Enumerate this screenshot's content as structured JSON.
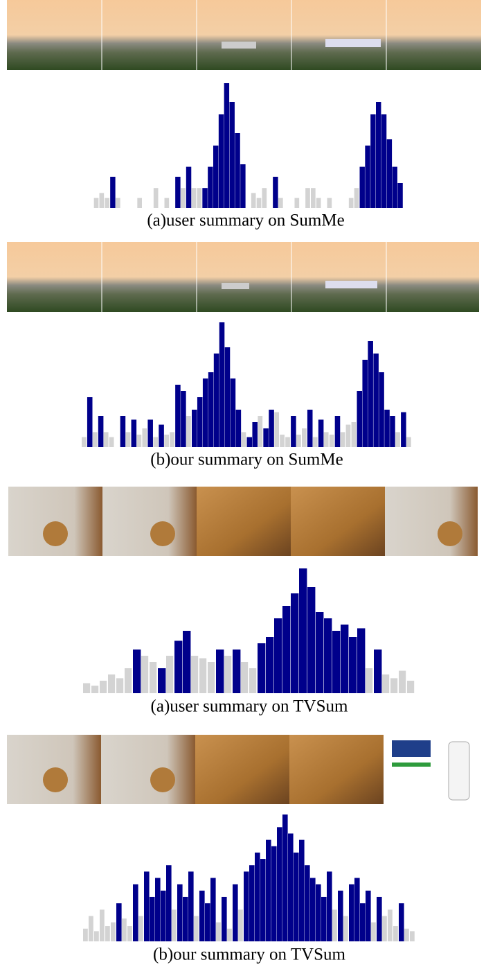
{
  "chart_data": [
    {
      "type": "bar",
      "title": "(a)user summary on SumMe",
      "color": "#00008b",
      "base_color": "#d3d3d3",
      "ylim": [
        0,
        100
      ],
      "values": [
        0,
        0,
        8,
        12,
        8,
        25,
        8,
        0,
        0,
        0,
        8,
        0,
        0,
        16,
        0,
        8,
        0,
        25,
        16,
        33,
        16,
        16,
        16,
        33,
        50,
        75,
        100,
        85,
        60,
        35,
        0,
        12,
        8,
        16,
        0,
        25,
        8,
        0,
        0,
        8,
        0,
        16,
        16,
        8,
        0,
        8,
        0,
        0,
        0,
        8,
        16,
        33,
        50,
        75,
        85,
        75,
        55,
        33,
        20,
        0
      ],
      "selected": [
        5,
        17,
        19,
        22,
        23,
        24,
        25,
        26,
        27,
        28,
        29,
        35,
        51,
        52,
        53,
        54,
        55,
        56,
        57,
        58
      ]
    },
    {
      "type": "bar",
      "title": "(b)our summary on SumMe",
      "color": "#00008b",
      "base_color": "#d3d3d3",
      "ylim": [
        0,
        100
      ],
      "values": [
        8,
        40,
        12,
        25,
        12,
        8,
        0,
        25,
        12,
        22,
        10,
        15,
        22,
        8,
        18,
        10,
        12,
        50,
        45,
        25,
        30,
        40,
        55,
        60,
        75,
        100,
        80,
        55,
        30,
        12,
        8,
        20,
        25,
        15,
        30,
        28,
        10,
        8,
        25,
        10,
        15,
        30,
        8,
        22,
        12,
        10,
        25,
        12,
        18,
        20,
        45,
        70,
        85,
        75,
        60,
        30,
        25,
        12,
        28,
        8
      ],
      "selected": [
        1,
        3,
        7,
        9,
        12,
        14,
        17,
        18,
        20,
        21,
        22,
        23,
        24,
        25,
        26,
        27,
        28,
        30,
        31,
        33,
        34,
        38,
        41,
        43,
        46,
        50,
        51,
        52,
        53,
        54,
        55,
        56,
        58
      ]
    },
    {
      "type": "bar",
      "title": "(a)user summary on TVSum",
      "color": "#00008b",
      "base_color": "#d3d3d3",
      "ylim": [
        0,
        100
      ],
      "values": [
        8,
        6,
        10,
        15,
        12,
        20,
        35,
        30,
        25,
        20,
        30,
        42,
        50,
        30,
        28,
        25,
        35,
        30,
        35,
        25,
        20,
        40,
        45,
        60,
        70,
        80,
        100,
        85,
        65,
        60,
        50,
        55,
        45,
        52,
        20,
        35,
        15,
        12,
        18,
        10
      ],
      "selected": [
        6,
        9,
        11,
        12,
        16,
        18,
        21,
        22,
        23,
        24,
        25,
        26,
        27,
        28,
        29,
        30,
        31,
        32,
        33,
        35
      ]
    },
    {
      "type": "bar",
      "title": "(b)our summary on TVSum",
      "color": "#00008b",
      "base_color": "#d3d3d3",
      "ylim": [
        0,
        100
      ],
      "values": [
        10,
        20,
        8,
        25,
        12,
        15,
        30,
        18,
        12,
        45,
        20,
        55,
        35,
        50,
        40,
        60,
        25,
        45,
        35,
        55,
        20,
        40,
        30,
        50,
        15,
        35,
        10,
        45,
        25,
        55,
        60,
        70,
        65,
        80,
        75,
        90,
        100,
        85,
        70,
        80,
        60,
        50,
        45,
        35,
        55,
        25,
        40,
        20,
        45,
        50,
        30,
        40,
        15,
        35,
        20,
        25,
        12,
        30,
        10,
        8
      ],
      "selected": [
        6,
        9,
        11,
        12,
        13,
        14,
        15,
        17,
        18,
        19,
        21,
        22,
        23,
        25,
        27,
        29,
        30,
        31,
        32,
        33,
        34,
        35,
        36,
        37,
        38,
        39,
        40,
        41,
        42,
        43,
        44,
        46,
        48,
        49,
        50,
        51,
        53,
        57
      ]
    }
  ]
}
